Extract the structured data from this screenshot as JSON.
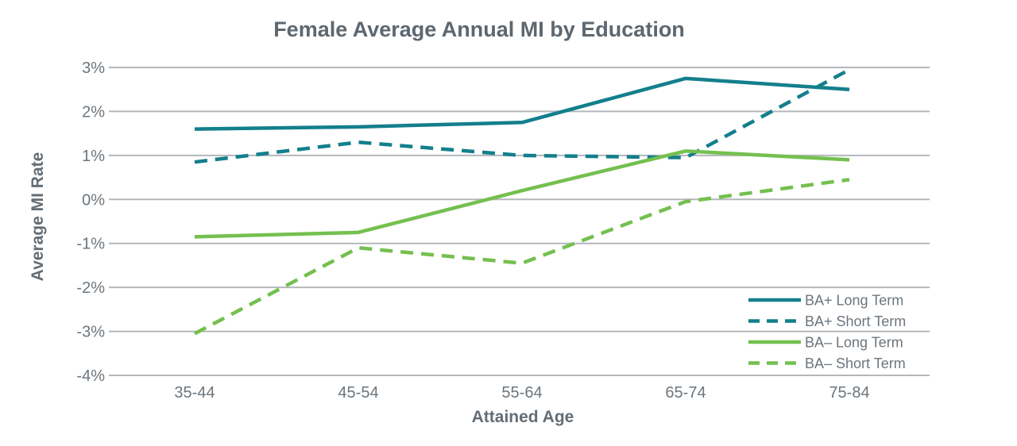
{
  "chart_data": {
    "type": "line",
    "title": "Female Average Annual MI by Education",
    "xlabel": "Attained Age",
    "ylabel": "Average MI Rate",
    "categories": [
      "35-44",
      "45-54",
      "55-64",
      "65-74",
      "75-84"
    ],
    "ylim": [
      -4,
      3
    ],
    "yticks": [
      3,
      2,
      1,
      0,
      -1,
      -2,
      -3,
      -4
    ],
    "ytick_labels": [
      "3%",
      "2%",
      "1%",
      "0%",
      "-1%",
      "-2%",
      "-3%",
      "-4%"
    ],
    "grid": true,
    "legend_position": "bottom-right",
    "series": [
      {
        "name": "BA+ Long Term",
        "color": "#137f8c",
        "dashed": false,
        "values": [
          1.6,
          1.65,
          1.75,
          2.75,
          2.5
        ]
      },
      {
        "name": "BA+ Short Term",
        "color": "#137f8c",
        "dashed": true,
        "values": [
          0.85,
          1.3,
          1.0,
          0.95,
          2.95
        ]
      },
      {
        "name": "BA– Long Term",
        "color": "#74c04f",
        "dashed": false,
        "values": [
          -0.85,
          -0.75,
          0.2,
          1.1,
          0.9
        ]
      },
      {
        "name": "BA– Short Term",
        "color": "#74c04f",
        "dashed": true,
        "values": [
          -3.05,
          -1.1,
          -1.45,
          -0.05,
          0.45
        ]
      }
    ]
  }
}
